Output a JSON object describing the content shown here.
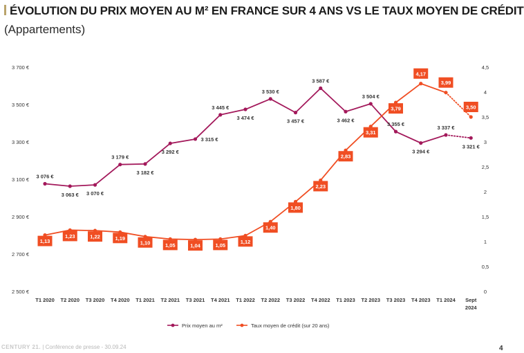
{
  "header": {
    "title": "ÉVOLUTION DU PRIX MOYEN AU M² EN FRANCE SUR 4 ANS VS LE TAUX MOYEN DE CRÉDIT",
    "subtitle": "(Appartements)"
  },
  "footer": {
    "brand": "CENTURY 21.",
    "text": "Conférence de presse - 30.09.24",
    "page_number": "4"
  },
  "chart_data": {
    "type": "line",
    "title": "ÉVOLUTION DU PRIX MOYEN AU M² EN FRANCE SUR 4 ANS VS LE TAUX MOYEN DE CRÉDIT",
    "subtitle": "(Appartements)",
    "categories": [
      "T1 2020",
      "T2 2020",
      "T3 2020",
      "T4 2020",
      "T1 2021",
      "T2 2021",
      "T3 2021",
      "T4 2021",
      "T1 2022",
      "T2 2022",
      "T3 2022",
      "T4 2022",
      "T1 2023",
      "T2 2023",
      "T3 2023",
      "T4 2023",
      "T1 2024",
      "Sept 2024"
    ],
    "category_lines": [
      [
        "T1 2020"
      ],
      [
        "T2 2020"
      ],
      [
        "T3 2020"
      ],
      [
        "T4 2020"
      ],
      [
        "T1 2021"
      ],
      [
        "T2 2021"
      ],
      [
        "T3 2021"
      ],
      [
        "T4 2021"
      ],
      [
        "T1 2022"
      ],
      [
        "T2 2022"
      ],
      [
        "T3 2022"
      ],
      [
        "T4 2022"
      ],
      [
        "T1 2023"
      ],
      [
        "T2 2023"
      ],
      [
        "T3 2023"
      ],
      [
        "T4 2023"
      ],
      [
        "T1 2024"
      ],
      [
        "Sept",
        "2024"
      ]
    ],
    "y_left": {
      "min": 2500,
      "max": 3700,
      "step": 200,
      "tick_labels": [
        "2 500 €",
        "2 700 €",
        "2 900 €",
        "3 100 €",
        "3 300 €",
        "3 500 €",
        "3 700 €"
      ]
    },
    "y_right": {
      "min": 0,
      "max": 4.5,
      "step": 0.5,
      "tick_labels": [
        "0",
        "0,5",
        "1",
        "1,5",
        "2",
        "2,5",
        "3",
        "3,5",
        "4",
        "4,5"
      ]
    },
    "grid": false,
    "legend_position": "bottom",
    "series": [
      {
        "name": "Prix moyen au m²",
        "axis": "left",
        "color": "#a3195b",
        "values": [
          3076,
          3063,
          3070,
          3179,
          3182,
          3292,
          3315,
          3445,
          3474,
          3530,
          3457,
          3587,
          3462,
          3504,
          3355,
          3294,
          3337,
          3321
        ],
        "labels": [
          "3 076 €",
          "3 063 €",
          "3 070 €",
          "3 179 €",
          "3 182 €",
          "3 292 €",
          "3 315 €",
          "3 445 €",
          "3 474 €",
          "3 530 €",
          "3 457 €",
          "3 587 €",
          "3 462 €",
          "3 504 €",
          "3 355 €",
          "3 294 €",
          "3 337 €",
          "3 321 €"
        ],
        "label_positions": [
          "above",
          "below",
          "below",
          "above",
          "below",
          "below",
          "right",
          "above",
          "below",
          "above",
          "below",
          "above",
          "below",
          "above",
          "above",
          "below",
          "above",
          "below"
        ],
        "last_segment_dotted": true
      },
      {
        "name": "Taux moyen de crédit (sur 20 ans)",
        "axis": "right",
        "color": "#f04e23",
        "values": [
          1.13,
          1.23,
          1.22,
          1.19,
          1.1,
          1.05,
          1.04,
          1.05,
          1.12,
          1.4,
          1.8,
          2.23,
          2.83,
          3.31,
          3.79,
          4.17,
          3.99,
          3.5
        ],
        "labels": [
          "1,13",
          "1,23",
          "1,22",
          "1,19",
          "1,10",
          "1,05",
          "1,04",
          "1,05",
          "1,12",
          "1,40",
          "1,80",
          "2,23",
          "2,83",
          "3,31",
          "3,79",
          "4,17",
          "3,99",
          "3,50"
        ],
        "label_positions": [
          "below",
          "below",
          "below",
          "below",
          "below",
          "below",
          "below",
          "below",
          "below",
          "below",
          "below",
          "below",
          "below",
          "below",
          "below",
          "above",
          "above",
          "above"
        ],
        "last_segment_dotted": true
      }
    ]
  }
}
